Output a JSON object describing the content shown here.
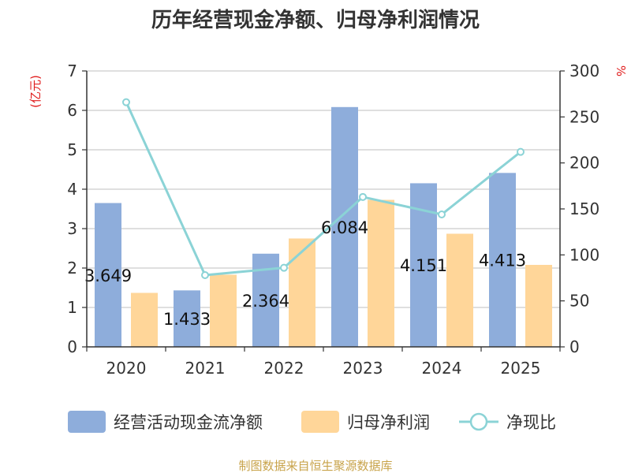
{
  "title": "历年经营现金净额、归母净利润情况",
  "source": "制图数据来自恒生聚源数据库",
  "colors": {
    "cashflow": "#8eaddb",
    "netprofit": "#ffd699",
    "ratio": "#8bd3d6",
    "axis": "#333333",
    "grid": "#cccccc",
    "unit": "#e01b1b",
    "source": "#c8a34a"
  },
  "chart_data": {
    "type": "bar",
    "title": "历年经营现金净额、归母净利润情况",
    "categories": [
      "2020",
      "2021",
      "2022",
      "2023",
      "2024",
      "2025"
    ],
    "y_left": {
      "unit": "(亿元)",
      "lim": [
        0,
        7
      ],
      "ticks": [
        "0",
        "1",
        "2",
        "3",
        "4",
        "5",
        "6",
        "7"
      ]
    },
    "y_right": {
      "unit": "%",
      "lim": [
        0,
        300
      ],
      "ticks": [
        "0",
        "50",
        "100",
        "150",
        "200",
        "250",
        "300"
      ]
    },
    "grid": true,
    "legend_position": "bottom",
    "series": [
      {
        "name": "经营活动现金流净额",
        "type": "bar",
        "axis": "left",
        "values": [
          3.649,
          1.433,
          2.364,
          6.084,
          4.151,
          4.413
        ],
        "labels": [
          "3.649",
          "1.433",
          "2.364",
          "6.084",
          "4.151",
          "4.413"
        ]
      },
      {
        "name": "归母净利润",
        "type": "bar",
        "axis": "left",
        "values": [
          1.37,
          1.83,
          2.75,
          3.73,
          2.87,
          2.08
        ]
      },
      {
        "name": "净现比",
        "type": "line",
        "axis": "right",
        "values": [
          266,
          78,
          86,
          163,
          144,
          212
        ]
      }
    ]
  }
}
